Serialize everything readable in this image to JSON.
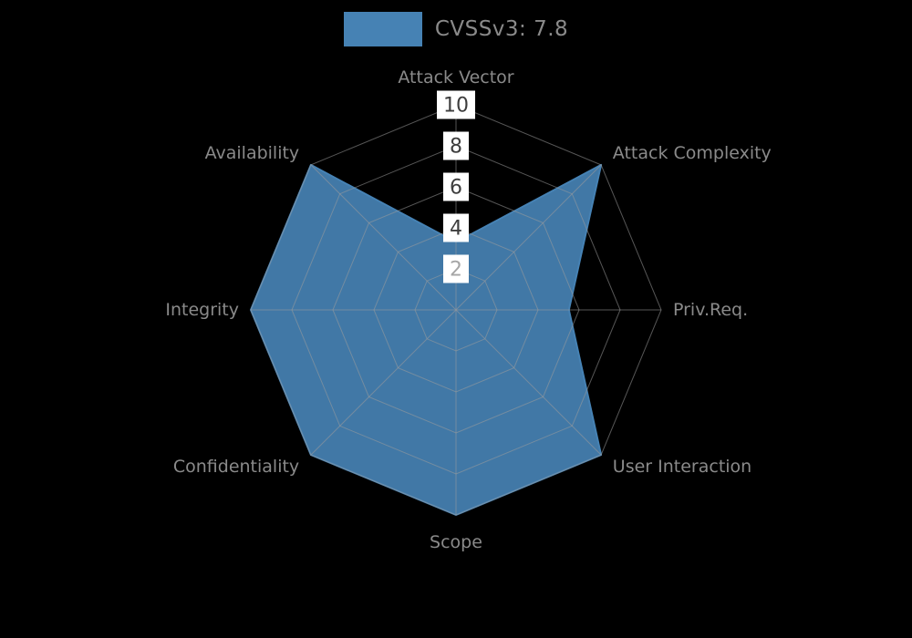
{
  "page": {
    "background_color": "#000000"
  },
  "legend": {
    "label": "CVSSv3: 7.8",
    "swatch_color": "#4682b4"
  },
  "chart_data": {
    "type": "radar",
    "title": "CVSSv3: 7.8",
    "categories": [
      "Attack Vector",
      "Attack Complexity",
      "Priv.Req.",
      "User Interaction",
      "Scope",
      "Confidentiality",
      "Integrity",
      "Availability"
    ],
    "values": [
      3.3,
      10,
      5.5,
      10,
      10,
      10,
      10,
      10
    ],
    "radial_ticks": [
      2,
      4,
      6,
      8,
      10
    ],
    "radial_tick_colors": {
      "2": "#a6a6a6",
      "default": "#3d3d3d"
    },
    "rlim": [
      0,
      10
    ],
    "grid": true,
    "grid_color": "#9c9c9c",
    "label_color": "#8a8a8a",
    "series_color": "#4682b4",
    "series_fill_opacity": 0.92,
    "tick_box_color": "#ffffff",
    "legend_position": "top-center"
  }
}
